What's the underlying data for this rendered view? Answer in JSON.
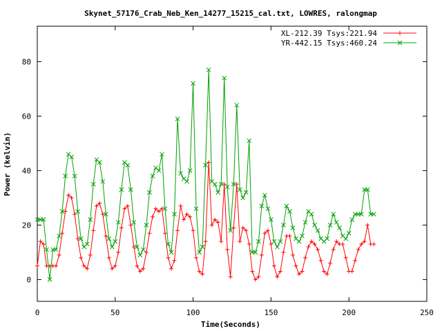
{
  "chart_data": {
    "type": "line",
    "title": "Skynet_57176_Crab_Neb_Ken_14277_15215_cal.txt, LOWRES, ralongmap",
    "xlabel": "Time(Seconds)",
    "ylabel": "Power (kelvin)",
    "xlim": [
      0,
      250
    ],
    "ylim": [
      -8,
      93
    ],
    "x_ticks": [
      0,
      50,
      100,
      150,
      200,
      250
    ],
    "y_ticks": [
      0,
      20,
      40,
      60,
      80
    ],
    "x_tick_labels": [
      "0",
      "50",
      "100",
      "150",
      "200",
      "250"
    ],
    "y_tick_labels": [
      "0",
      "20",
      "40",
      "60",
      "80"
    ],
    "grid": false,
    "legend_position": "top-right",
    "series": [
      {
        "name": "XL-212.39 Tsys:221.94",
        "color": "#ff0000",
        "marker": "plus",
        "points": [
          [
            0,
            5
          ],
          [
            2,
            14
          ],
          [
            4,
            13
          ],
          [
            6,
            5
          ],
          [
            8,
            5
          ],
          [
            10,
            5
          ],
          [
            12,
            5
          ],
          [
            14,
            9
          ],
          [
            16,
            17
          ],
          [
            18,
            25
          ],
          [
            20,
            31
          ],
          [
            22,
            30
          ],
          [
            24,
            24
          ],
          [
            26,
            15
          ],
          [
            28,
            8
          ],
          [
            30,
            5
          ],
          [
            32,
            4
          ],
          [
            34,
            9
          ],
          [
            36,
            18
          ],
          [
            38,
            27
          ],
          [
            40,
            28
          ],
          [
            42,
            24
          ],
          [
            44,
            16
          ],
          [
            46,
            8
          ],
          [
            48,
            4
          ],
          [
            50,
            5
          ],
          [
            52,
            10
          ],
          [
            54,
            19
          ],
          [
            56,
            26
          ],
          [
            58,
            27
          ],
          [
            60,
            20
          ],
          [
            62,
            12
          ],
          [
            64,
            5
          ],
          [
            66,
            3
          ],
          [
            68,
            4
          ],
          [
            70,
            10
          ],
          [
            72,
            17
          ],
          [
            74,
            23
          ],
          [
            76,
            26
          ],
          [
            78,
            25
          ],
          [
            80,
            26
          ],
          [
            82,
            17
          ],
          [
            84,
            8
          ],
          [
            86,
            4
          ],
          [
            88,
            7
          ],
          [
            90,
            18
          ],
          [
            92,
            27
          ],
          [
            94,
            22
          ],
          [
            96,
            24
          ],
          [
            98,
            23
          ],
          [
            100,
            18
          ],
          [
            102,
            8
          ],
          [
            104,
            3
          ],
          [
            106,
            2
          ],
          [
            108,
            14
          ],
          [
            110,
            43
          ],
          [
            112,
            20
          ],
          [
            114,
            22
          ],
          [
            116,
            21
          ],
          [
            118,
            14
          ],
          [
            120,
            35
          ],
          [
            122,
            11
          ],
          [
            124,
            1
          ],
          [
            126,
            19
          ],
          [
            128,
            35
          ],
          [
            130,
            14
          ],
          [
            132,
            19
          ],
          [
            134,
            18
          ],
          [
            136,
            13
          ],
          [
            138,
            3
          ],
          [
            140,
            0
          ],
          [
            142,
            1
          ],
          [
            144,
            9
          ],
          [
            146,
            17
          ],
          [
            148,
            18
          ],
          [
            150,
            13
          ],
          [
            152,
            5
          ],
          [
            154,
            1
          ],
          [
            156,
            3
          ],
          [
            158,
            10
          ],
          [
            160,
            16
          ],
          [
            162,
            16
          ],
          [
            164,
            9
          ],
          [
            166,
            5
          ],
          [
            168,
            2
          ],
          [
            170,
            3
          ],
          [
            172,
            8
          ],
          [
            174,
            12
          ],
          [
            176,
            14
          ],
          [
            178,
            13
          ],
          [
            180,
            11
          ],
          [
            182,
            7
          ],
          [
            184,
            3
          ],
          [
            186,
            2
          ],
          [
            188,
            6
          ],
          [
            190,
            11
          ],
          [
            192,
            14
          ],
          [
            194,
            13
          ],
          [
            196,
            13
          ],
          [
            198,
            8
          ],
          [
            200,
            3
          ],
          [
            202,
            3
          ],
          [
            204,
            7
          ],
          [
            206,
            11
          ],
          [
            208,
            13
          ],
          [
            210,
            14
          ],
          [
            212,
            20
          ],
          [
            214,
            13
          ],
          [
            216,
            13
          ]
        ]
      },
      {
        "name": "YR-442.15 Tsys:460.24",
        "color": "#00a000",
        "marker": "cross",
        "points": [
          [
            0,
            22
          ],
          [
            2,
            22
          ],
          [
            4,
            22
          ],
          [
            6,
            11
          ],
          [
            8,
            0
          ],
          [
            10,
            11
          ],
          [
            12,
            11
          ],
          [
            14,
            16
          ],
          [
            16,
            25
          ],
          [
            18,
            38
          ],
          [
            20,
            46
          ],
          [
            22,
            45
          ],
          [
            24,
            38
          ],
          [
            26,
            25
          ],
          [
            28,
            15
          ],
          [
            30,
            12
          ],
          [
            32,
            13
          ],
          [
            34,
            22
          ],
          [
            36,
            35
          ],
          [
            38,
            44
          ],
          [
            40,
            43
          ],
          [
            42,
            36
          ],
          [
            44,
            24
          ],
          [
            46,
            15
          ],
          [
            48,
            12
          ],
          [
            50,
            14
          ],
          [
            52,
            21
          ],
          [
            54,
            33
          ],
          [
            56,
            43
          ],
          [
            58,
            42
          ],
          [
            60,
            33
          ],
          [
            62,
            21
          ],
          [
            64,
            12
          ],
          [
            66,
            9
          ],
          [
            68,
            11
          ],
          [
            70,
            20
          ],
          [
            72,
            32
          ],
          [
            74,
            38
          ],
          [
            76,
            41
          ],
          [
            78,
            40
          ],
          [
            80,
            46
          ],
          [
            82,
            26
          ],
          [
            84,
            13
          ],
          [
            86,
            10
          ],
          [
            88,
            24
          ],
          [
            90,
            59
          ],
          [
            92,
            39
          ],
          [
            94,
            37
          ],
          [
            96,
            36
          ],
          [
            98,
            40
          ],
          [
            100,
            72
          ],
          [
            102,
            26
          ],
          [
            104,
            10
          ],
          [
            106,
            12
          ],
          [
            108,
            42
          ],
          [
            110,
            77
          ],
          [
            112,
            36
          ],
          [
            114,
            35
          ],
          [
            116,
            32
          ],
          [
            118,
            35
          ],
          [
            120,
            74
          ],
          [
            122,
            34
          ],
          [
            124,
            18
          ],
          [
            126,
            35
          ],
          [
            128,
            64
          ],
          [
            130,
            33
          ],
          [
            132,
            30
          ],
          [
            134,
            32
          ],
          [
            136,
            51
          ],
          [
            138,
            10
          ],
          [
            140,
            10
          ],
          [
            142,
            14
          ],
          [
            144,
            27
          ],
          [
            146,
            31
          ],
          [
            148,
            26
          ],
          [
            150,
            22
          ],
          [
            152,
            14
          ],
          [
            154,
            12
          ],
          [
            156,
            14
          ],
          [
            158,
            20
          ],
          [
            160,
            27
          ],
          [
            162,
            25
          ],
          [
            164,
            19
          ],
          [
            166,
            15
          ],
          [
            168,
            14
          ],
          [
            170,
            16
          ],
          [
            172,
            21
          ],
          [
            174,
            25
          ],
          [
            176,
            24
          ],
          [
            178,
            20
          ],
          [
            180,
            18
          ],
          [
            182,
            15
          ],
          [
            184,
            14
          ],
          [
            186,
            15
          ],
          [
            188,
            20
          ],
          [
            190,
            24
          ],
          [
            192,
            21
          ],
          [
            194,
            19
          ],
          [
            196,
            16
          ],
          [
            198,
            15
          ],
          [
            200,
            17
          ],
          [
            202,
            22
          ],
          [
            204,
            24
          ],
          [
            206,
            24
          ],
          [
            208,
            24
          ],
          [
            210,
            33
          ],
          [
            212,
            33
          ],
          [
            214,
            24
          ],
          [
            216,
            24
          ]
        ]
      }
    ]
  }
}
